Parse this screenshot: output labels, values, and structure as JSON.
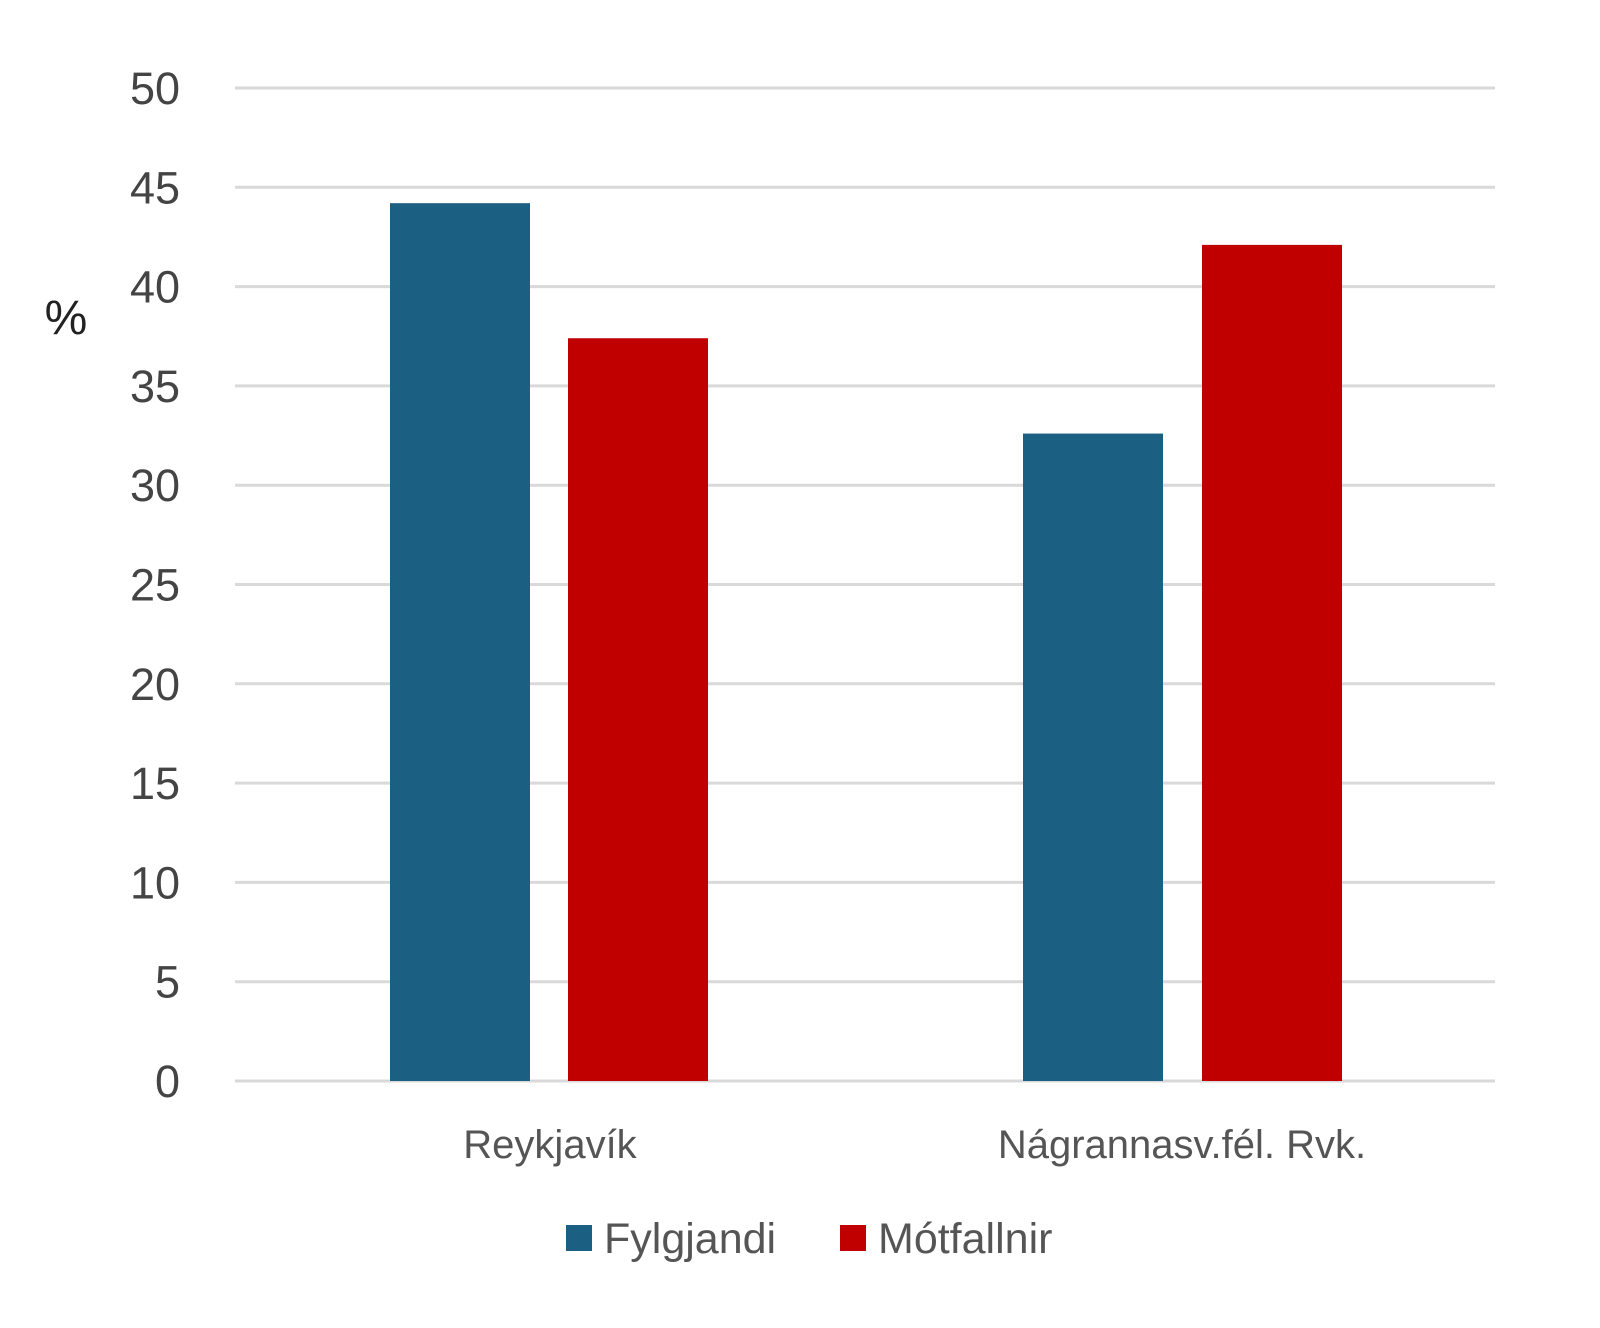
{
  "chart_data": {
    "type": "bar",
    "title": "",
    "xlabel": "",
    "ylabel": "%",
    "ylim": [
      0,
      50
    ],
    "yticks": [
      0,
      5,
      10,
      15,
      20,
      25,
      30,
      35,
      40,
      45,
      50
    ],
    "grid": true,
    "legend_position": "bottom",
    "categories": [
      "Reykjavík",
      "Nágrannasv.fél. Rvk."
    ],
    "series": [
      {
        "name": "Fylgjandi",
        "color": "#1b5f82",
        "values": [
          44.2,
          32.6
        ]
      },
      {
        "name": "Mótfallnir",
        "color": "#c00000",
        "values": [
          37.4,
          42.1
        ]
      }
    ]
  }
}
